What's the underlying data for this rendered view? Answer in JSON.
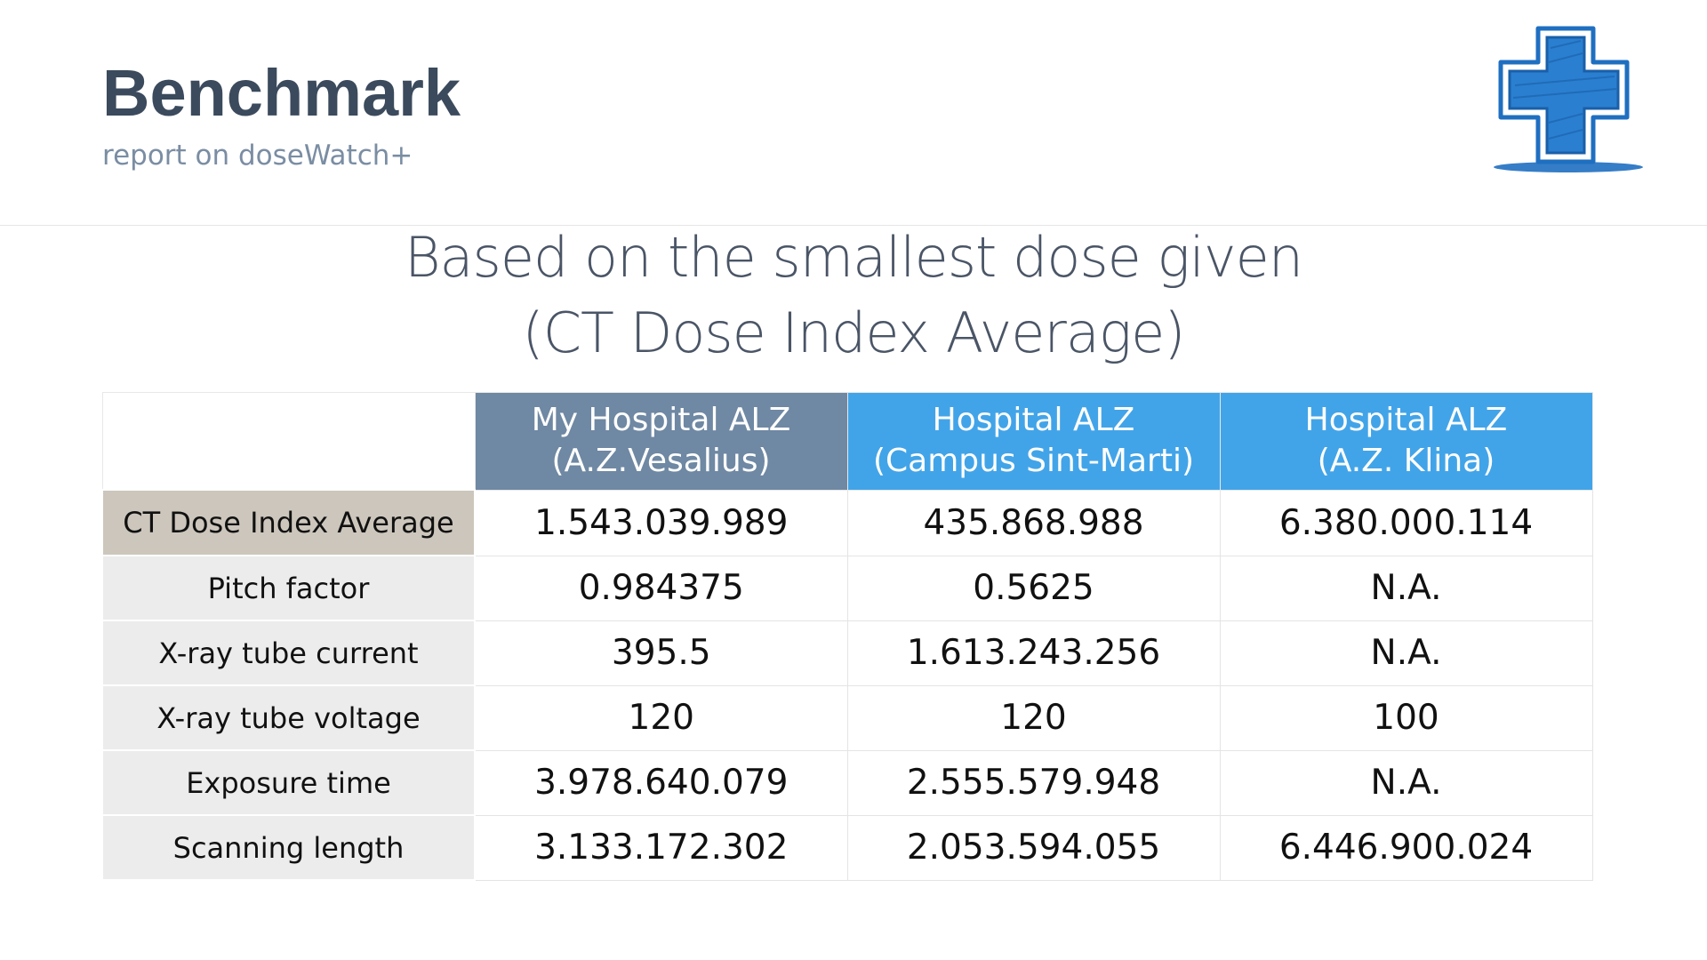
{
  "header": {
    "title": "Benchmark",
    "subtitle": "report on doseWatch+",
    "logo_icon": "medical-cross-icon"
  },
  "heading": {
    "line1": "Based on the smallest dose given",
    "line2": "(CT Dose Index Average)"
  },
  "colors": {
    "title": "#3b4a5c",
    "subtitle": "#7a8da3",
    "my_hospital_header": "#6f88a3",
    "other_hospital_header": "#42a4e8",
    "highlight_label": "#ccc6bc",
    "label_background": "#ececec",
    "logo_blue": "#1f6fc1"
  },
  "table": {
    "columns": [
      {
        "line1": "My Hospital ALZ",
        "line2": "(A.Z.Vesalius)"
      },
      {
        "line1": "Hospital ALZ",
        "line2": "(Campus Sint-Marti)"
      },
      {
        "line1": "Hospital ALZ",
        "line2": "(A.Z. Klina)"
      }
    ],
    "rows": [
      {
        "label": "CT Dose Index Average",
        "values": [
          "1.543.039.989",
          "435.868.988",
          "6.380.000.114"
        ]
      },
      {
        "label": "Pitch factor",
        "values": [
          "0.984375",
          "0.5625",
          "N.A."
        ]
      },
      {
        "label": "X-ray tube current",
        "values": [
          "395.5",
          "1.613.243.256",
          "N.A."
        ]
      },
      {
        "label": "X-ray tube voltage",
        "values": [
          "120",
          "120",
          "100"
        ]
      },
      {
        "label": "Exposure time",
        "values": [
          "3.978.640.079",
          "2.555.579.948",
          "N.A."
        ]
      },
      {
        "label": "Scanning length",
        "values": [
          "3.133.172.302",
          "2.053.594.055",
          "6.446.900.024"
        ]
      }
    ]
  }
}
